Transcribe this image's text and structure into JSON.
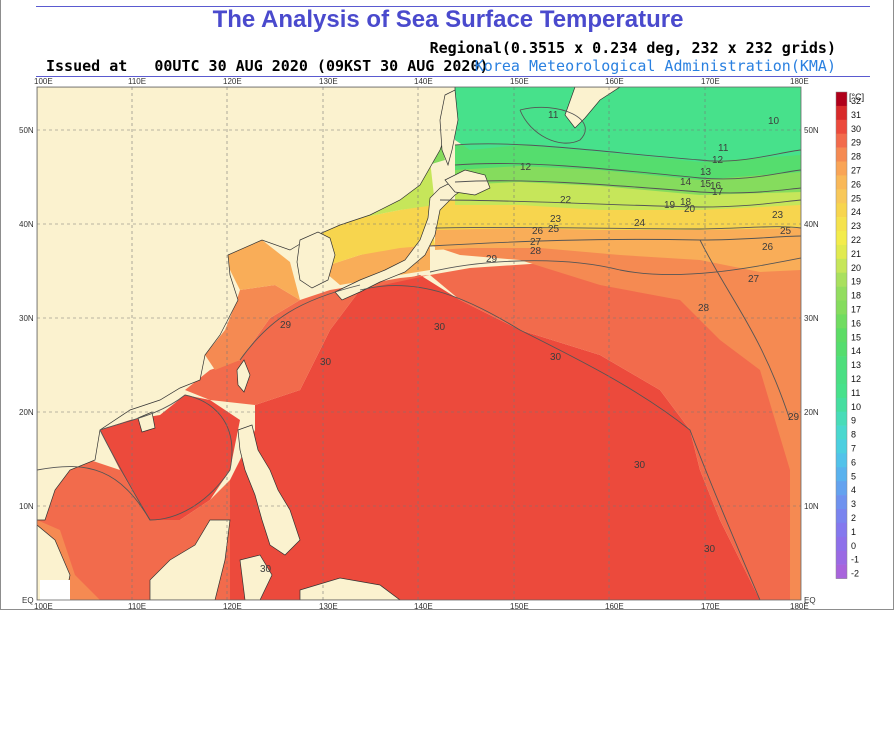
{
  "header": {
    "title": "The Analysis of Sea Surface Temperature",
    "issued_prefix": "Issued at",
    "issued_time": "00UTC 30 AUG 2020 (09KST 30 AUG 2020)",
    "regional": "Regional(0.3515 x 0.234 deg, 232 x 232 grids)",
    "agency": "Korea Meteorological Administration(KMA)"
  },
  "map": {
    "lon_ticks": [
      "100E",
      "110E",
      "120E",
      "130E",
      "140E",
      "150E",
      "160E",
      "170E",
      "180E"
    ],
    "lat_ticks": [
      "EQ",
      "10N",
      "20N",
      "30N",
      "40N",
      "50N"
    ],
    "colors": {
      "land": "#fbf2cf",
      "warm30": "#ec4a3c",
      "c29": "#f26b4c",
      "c28": "#f58a52",
      "c26": "#f9ad58",
      "c24": "#f7d54e",
      "c22": "#f3ec4b",
      "c20": "#c6e65a",
      "c17": "#85dc5d",
      "c14": "#55dd6e",
      "c11": "#47e18b",
      "grid": "#777777"
    }
  },
  "isotherms": [
    {
      "label": "10"
    },
    {
      "label": "11"
    },
    {
      "label": "11"
    },
    {
      "label": "12"
    },
    {
      "label": "12"
    },
    {
      "label": "13"
    },
    {
      "label": "14"
    },
    {
      "label": "15"
    },
    {
      "label": "16"
    },
    {
      "label": "17"
    },
    {
      "label": "19"
    },
    {
      "label": "18"
    },
    {
      "label": "20"
    },
    {
      "label": "22"
    },
    {
      "label": "23"
    },
    {
      "label": "23"
    },
    {
      "label": "24"
    },
    {
      "label": "25"
    },
    {
      "label": "25"
    },
    {
      "label": "26"
    },
    {
      "label": "26"
    },
    {
      "label": "27"
    },
    {
      "label": "27"
    },
    {
      "label": "28"
    },
    {
      "label": "28"
    },
    {
      "label": "29"
    },
    {
      "label": "29"
    },
    {
      "label": "29"
    },
    {
      "label": "30"
    },
    {
      "label": "30"
    },
    {
      "label": "30"
    },
    {
      "label": "30"
    },
    {
      "label": "30"
    },
    {
      "label": "30"
    }
  ],
  "colorbar": {
    "unit": "[°C]",
    "labels": [
      "32",
      "31",
      "30",
      "29",
      "28",
      "27",
      "26",
      "25",
      "24",
      "23",
      "22",
      "21",
      "20",
      "19",
      "18",
      "17",
      "16",
      "15",
      "14",
      "13",
      "12",
      "11",
      "10",
      "9",
      "8",
      "7",
      "6",
      "5",
      "4",
      "3",
      "2",
      "1",
      "0",
      "-1",
      "-2"
    ],
    "colors": [
      "#b0001a",
      "#d82a2a",
      "#ec4a3c",
      "#f26b4c",
      "#f58a52",
      "#f9a456",
      "#f9b858",
      "#f8c85a",
      "#f7d54e",
      "#f5e24d",
      "#f3ec4b",
      "#e1ea4f",
      "#c6e65a",
      "#a9e05e",
      "#93dd5f",
      "#85dc5d",
      "#70dc60",
      "#5ddc65",
      "#55dd6e",
      "#4ede7b",
      "#4adf84",
      "#47e18b",
      "#46dea0",
      "#48dcb8",
      "#4ad8cf",
      "#4ccfe0",
      "#52c2ea",
      "#5ab2ee",
      "#64a2ef",
      "#6f92ef",
      "#7a84ef",
      "#8478ee",
      "#8e70ea",
      "#9a6ae4",
      "#a864dc"
    ]
  }
}
